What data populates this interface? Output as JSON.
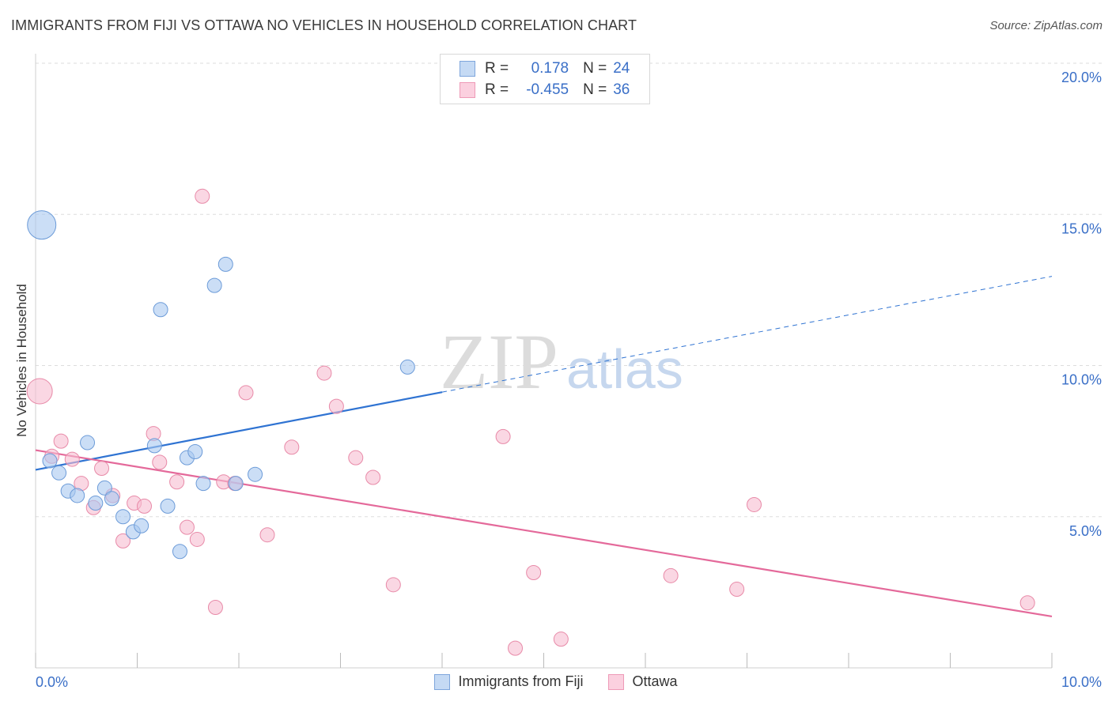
{
  "header": {
    "title": "IMMIGRANTS FROM FIJI VS OTTAWA NO VEHICLES IN HOUSEHOLD CORRELATION CHART",
    "source": "Source: ZipAtlas.com"
  },
  "watermark": {
    "part1": "ZIP",
    "part2": "atlas"
  },
  "legend_top": {
    "rows": [
      {
        "r_label": "R =",
        "r_value": "0.178",
        "n_label": "N =",
        "n_value": "24"
      },
      {
        "r_label": "R =",
        "r_value": "-0.455",
        "n_label": "N =",
        "n_value": "36"
      }
    ]
  },
  "colors": {
    "fiji_fill": "#a9c8f0",
    "fiji_stroke": "#6c9bd8",
    "fiji_line": "#2f73d2",
    "ottawa_fill": "#f6bcd0",
    "ottawa_stroke": "#e88aa8",
    "ottawa_line": "#e4699a",
    "tick_label": "#3a6fc7",
    "grid": "#dddddd"
  },
  "chart_data": {
    "type": "scatter",
    "title": "IMMIGRANTS FROM FIJI VS OTTAWA NO VEHICLES IN HOUSEHOLD CORRELATION CHART",
    "xlabel": "",
    "ylabel": "No Vehicles in Household",
    "xlim": [
      0,
      10
    ],
    "ylim": [
      0,
      20
    ],
    "x_tick_labels": [
      "0.0%",
      "10.0%"
    ],
    "y_ticks": [
      5,
      10,
      15,
      20
    ],
    "y_tick_labels": [
      "5.0%",
      "10.0%",
      "15.0%",
      "20.0%"
    ],
    "grid": true,
    "legend_position": "bottom",
    "series": [
      {
        "name": "Immigrants from Fiji",
        "r": 0.178,
        "n": 24,
        "trend": {
          "start": [
            0,
            6.55
          ],
          "end_solid": [
            4.0,
            9.12
          ],
          "end_dashed": [
            10,
            12.95
          ]
        },
        "points": [
          {
            "x": 0.06,
            "y": 14.65,
            "big": true
          },
          {
            "x": 0.14,
            "y": 6.85
          },
          {
            "x": 0.23,
            "y": 6.45
          },
          {
            "x": 0.32,
            "y": 5.85
          },
          {
            "x": 0.41,
            "y": 5.7
          },
          {
            "x": 0.51,
            "y": 7.45
          },
          {
            "x": 0.59,
            "y": 5.45
          },
          {
            "x": 0.68,
            "y": 5.95
          },
          {
            "x": 0.75,
            "y": 5.6
          },
          {
            "x": 0.86,
            "y": 5.0
          },
          {
            "x": 0.96,
            "y": 4.5
          },
          {
            "x": 1.04,
            "y": 4.7
          },
          {
            "x": 1.17,
            "y": 7.35
          },
          {
            "x": 1.23,
            "y": 11.85
          },
          {
            "x": 1.3,
            "y": 5.35
          },
          {
            "x": 1.42,
            "y": 3.85
          },
          {
            "x": 1.49,
            "y": 6.95
          },
          {
            "x": 1.57,
            "y": 7.15
          },
          {
            "x": 1.65,
            "y": 6.1
          },
          {
            "x": 1.76,
            "y": 12.65
          },
          {
            "x": 1.87,
            "y": 13.35
          },
          {
            "x": 1.97,
            "y": 6.1
          },
          {
            "x": 2.16,
            "y": 6.4
          },
          {
            "x": 3.66,
            "y": 9.95
          }
        ]
      },
      {
        "name": "Ottawa",
        "r": -0.455,
        "n": 36,
        "trend": {
          "start": [
            0,
            7.2
          ],
          "end": [
            10,
            1.7
          ]
        },
        "points": [
          {
            "x": 0.04,
            "y": 9.15,
            "big": true
          },
          {
            "x": 0.16,
            "y": 7.0
          },
          {
            "x": 0.25,
            "y": 7.5
          },
          {
            "x": 0.36,
            "y": 6.9
          },
          {
            "x": 0.45,
            "y": 6.1
          },
          {
            "x": 0.57,
            "y": 5.3
          },
          {
            "x": 0.65,
            "y": 6.6
          },
          {
            "x": 0.76,
            "y": 5.7
          },
          {
            "x": 0.86,
            "y": 4.2
          },
          {
            "x": 0.97,
            "y": 5.45
          },
          {
            "x": 1.07,
            "y": 5.35
          },
          {
            "x": 1.16,
            "y": 7.75
          },
          {
            "x": 1.22,
            "y": 6.8
          },
          {
            "x": 1.39,
            "y": 6.15
          },
          {
            "x": 1.49,
            "y": 4.65
          },
          {
            "x": 1.59,
            "y": 4.25
          },
          {
            "x": 1.64,
            "y": 15.6
          },
          {
            "x": 1.77,
            "y": 2.0
          },
          {
            "x": 1.85,
            "y": 6.15
          },
          {
            "x": 1.96,
            "y": 6.1
          },
          {
            "x": 2.07,
            "y": 9.1
          },
          {
            "x": 2.28,
            "y": 4.4
          },
          {
            "x": 2.52,
            "y": 7.3
          },
          {
            "x": 2.84,
            "y": 9.75
          },
          {
            "x": 2.96,
            "y": 8.65
          },
          {
            "x": 3.15,
            "y": 6.95
          },
          {
            "x": 3.32,
            "y": 6.3
          },
          {
            "x": 3.52,
            "y": 2.75
          },
          {
            "x": 4.6,
            "y": 7.65
          },
          {
            "x": 4.72,
            "y": 0.65
          },
          {
            "x": 4.9,
            "y": 3.15
          },
          {
            "x": 5.17,
            "y": 0.95
          },
          {
            "x": 6.25,
            "y": 3.05
          },
          {
            "x": 6.9,
            "y": 2.6
          },
          {
            "x": 7.07,
            "y": 5.4
          },
          {
            "x": 9.76,
            "y": 2.15
          }
        ]
      }
    ]
  }
}
